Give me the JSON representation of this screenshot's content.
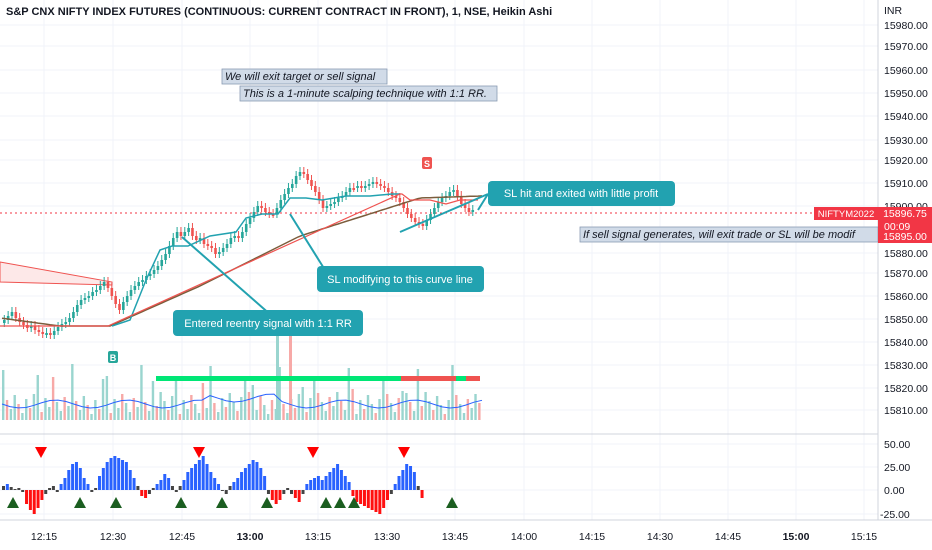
{
  "chart_title": "S&P CNX NIFTY INDEX FUTURES (CONTINUOUS: CURRENT CONTRACT IN FRONT), 1, NSE, Heikin Ashi",
  "currency": "INR",
  "price_axis": [
    "15980.00",
    "15970.00",
    "15960.00",
    "15950.00",
    "15940.00",
    "15930.00",
    "15920.00",
    "15910.00",
    "15900.00",
    "15880.00",
    "15870.00",
    "15860.00",
    "15850.00",
    "15840.00",
    "15830.00",
    "15820.00",
    "15810.00"
  ],
  "osc_axis": [
    "50.00",
    "25.00",
    "0.00",
    "-25.00"
  ],
  "time_axis": [
    "12:15",
    "12:30",
    "12:45",
    "13:00",
    "13:15",
    "13:30",
    "13:45",
    "14:00",
    "14:15",
    "14:30",
    "14:45",
    "15:00",
    "15:15"
  ],
  "symbol_tag": {
    "symbol": "NIFTYM2022",
    "price": "15896.75",
    "countdown": "00:09",
    "level": "15895.00",
    "color": "#f23645"
  },
  "notes": {
    "note1": "We will exit target or sell signal",
    "note2": "This is a 1-minute scalping technique with 1:1 RR.",
    "note3": "If sell signal generates, will exit trade or SL will be modif"
  },
  "callouts": {
    "sl_hit": "SL hit and exited with little profit",
    "sl_mod": "SL modifying to this curve line",
    "entry": "Entered reentry signal with 1:1 RR"
  },
  "markers": {
    "buy": "B",
    "sell": "S"
  },
  "colors": {
    "up": "#26a69a",
    "down": "#ef5350",
    "callout": "#22a2b0",
    "note_bg": "#d1dbe8",
    "osc_pos": "#2962ff",
    "osc_neg": "#ff1010",
    "signal_up": "#1b5e20",
    "signal_down": "#ff0000"
  }
}
